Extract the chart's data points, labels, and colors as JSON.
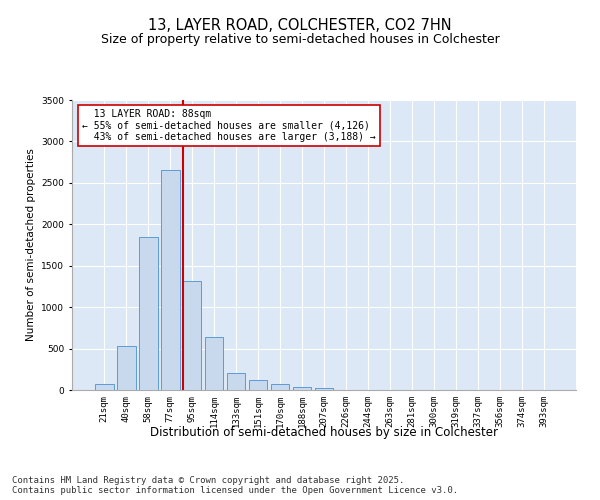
{
  "title": "13, LAYER ROAD, COLCHESTER, CO2 7HN",
  "subtitle": "Size of property relative to semi-detached houses in Colchester",
  "xlabel": "Distribution of semi-detached houses by size in Colchester",
  "ylabel": "Number of semi-detached properties",
  "bins": [
    "21sqm",
    "40sqm",
    "58sqm",
    "77sqm",
    "95sqm",
    "114sqm",
    "133sqm",
    "151sqm",
    "170sqm",
    "188sqm",
    "207sqm",
    "226sqm",
    "244sqm",
    "263sqm",
    "281sqm",
    "300sqm",
    "319sqm",
    "337sqm",
    "356sqm",
    "374sqm",
    "393sqm"
  ],
  "bar_values": [
    75,
    530,
    1850,
    2650,
    1320,
    640,
    210,
    120,
    70,
    40,
    20,
    5,
    3,
    2,
    1,
    0,
    0,
    0,
    0,
    0,
    0
  ],
  "bar_color": "#c8d9ee",
  "bar_edge_color": "#5b9bd5",
  "property_label": "13 LAYER ROAD: 88sqm",
  "pct_smaller": 55,
  "n_smaller": 4126,
  "pct_larger": 43,
  "n_larger": 3188,
  "vline_color": "#cc0000",
  "annotation_box_color": "#ffffff",
  "annotation_box_edge": "#cc0000",
  "ylim": [
    0,
    3500
  ],
  "yticks": [
    0,
    500,
    1000,
    1500,
    2000,
    2500,
    3000,
    3500
  ],
  "background_color": "#dce8f5",
  "footer_line1": "Contains HM Land Registry data © Crown copyright and database right 2025.",
  "footer_line2": "Contains public sector information licensed under the Open Government Licence v3.0.",
  "title_fontsize": 10.5,
  "subtitle_fontsize": 9,
  "xlabel_fontsize": 8.5,
  "ylabel_fontsize": 7.5,
  "tick_fontsize": 6.5,
  "annot_fontsize": 7,
  "footer_fontsize": 6.5
}
